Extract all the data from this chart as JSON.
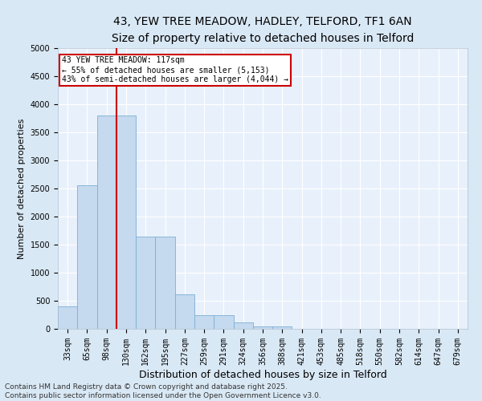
{
  "title_line1": "43, YEW TREE MEADOW, HADLEY, TELFORD, TF1 6AN",
  "title_line2": "Size of property relative to detached houses in Telford",
  "xlabel": "Distribution of detached houses by size in Telford",
  "ylabel": "Number of detached properties",
  "categories": [
    "33sqm",
    "65sqm",
    "98sqm",
    "130sqm",
    "162sqm",
    "195sqm",
    "227sqm",
    "259sqm",
    "291sqm",
    "324sqm",
    "356sqm",
    "388sqm",
    "421sqm",
    "453sqm",
    "485sqm",
    "518sqm",
    "550sqm",
    "582sqm",
    "614sqm",
    "647sqm",
    "679sqm"
  ],
  "values": [
    400,
    2550,
    3800,
    3800,
    1650,
    1650,
    620,
    250,
    250,
    110,
    50,
    50,
    0,
    0,
    0,
    0,
    0,
    0,
    0,
    0,
    0
  ],
  "bar_color": "#c5d9ef",
  "bar_edge_color": "#7bafd4",
  "vline_color": "#cc0000",
  "vline_x_index": 2.5,
  "ylim": [
    0,
    5000
  ],
  "yticks": [
    0,
    500,
    1000,
    1500,
    2000,
    2500,
    3000,
    3500,
    4000,
    4500,
    5000
  ],
  "annotation_text": "43 YEW TREE MEADOW: 117sqm\n← 55% of detached houses are smaller (5,153)\n43% of semi-detached houses are larger (4,044) →",
  "annotation_box_facecolor": "#ffffff",
  "annotation_box_edgecolor": "#cc0000",
  "footer_line1": "Contains HM Land Registry data © Crown copyright and database right 2025.",
  "footer_line2": "Contains public sector information licensed under the Open Government Licence v3.0.",
  "bg_color": "#d9e8f5",
  "plot_bg_color": "#e8f1fb",
  "grid_color": "#ffffff",
  "title_fontsize": 10,
  "subtitle_fontsize": 9,
  "tick_fontsize": 7,
  "ylabel_fontsize": 8,
  "xlabel_fontsize": 9,
  "annotation_fontsize": 7,
  "footer_fontsize": 6.5
}
